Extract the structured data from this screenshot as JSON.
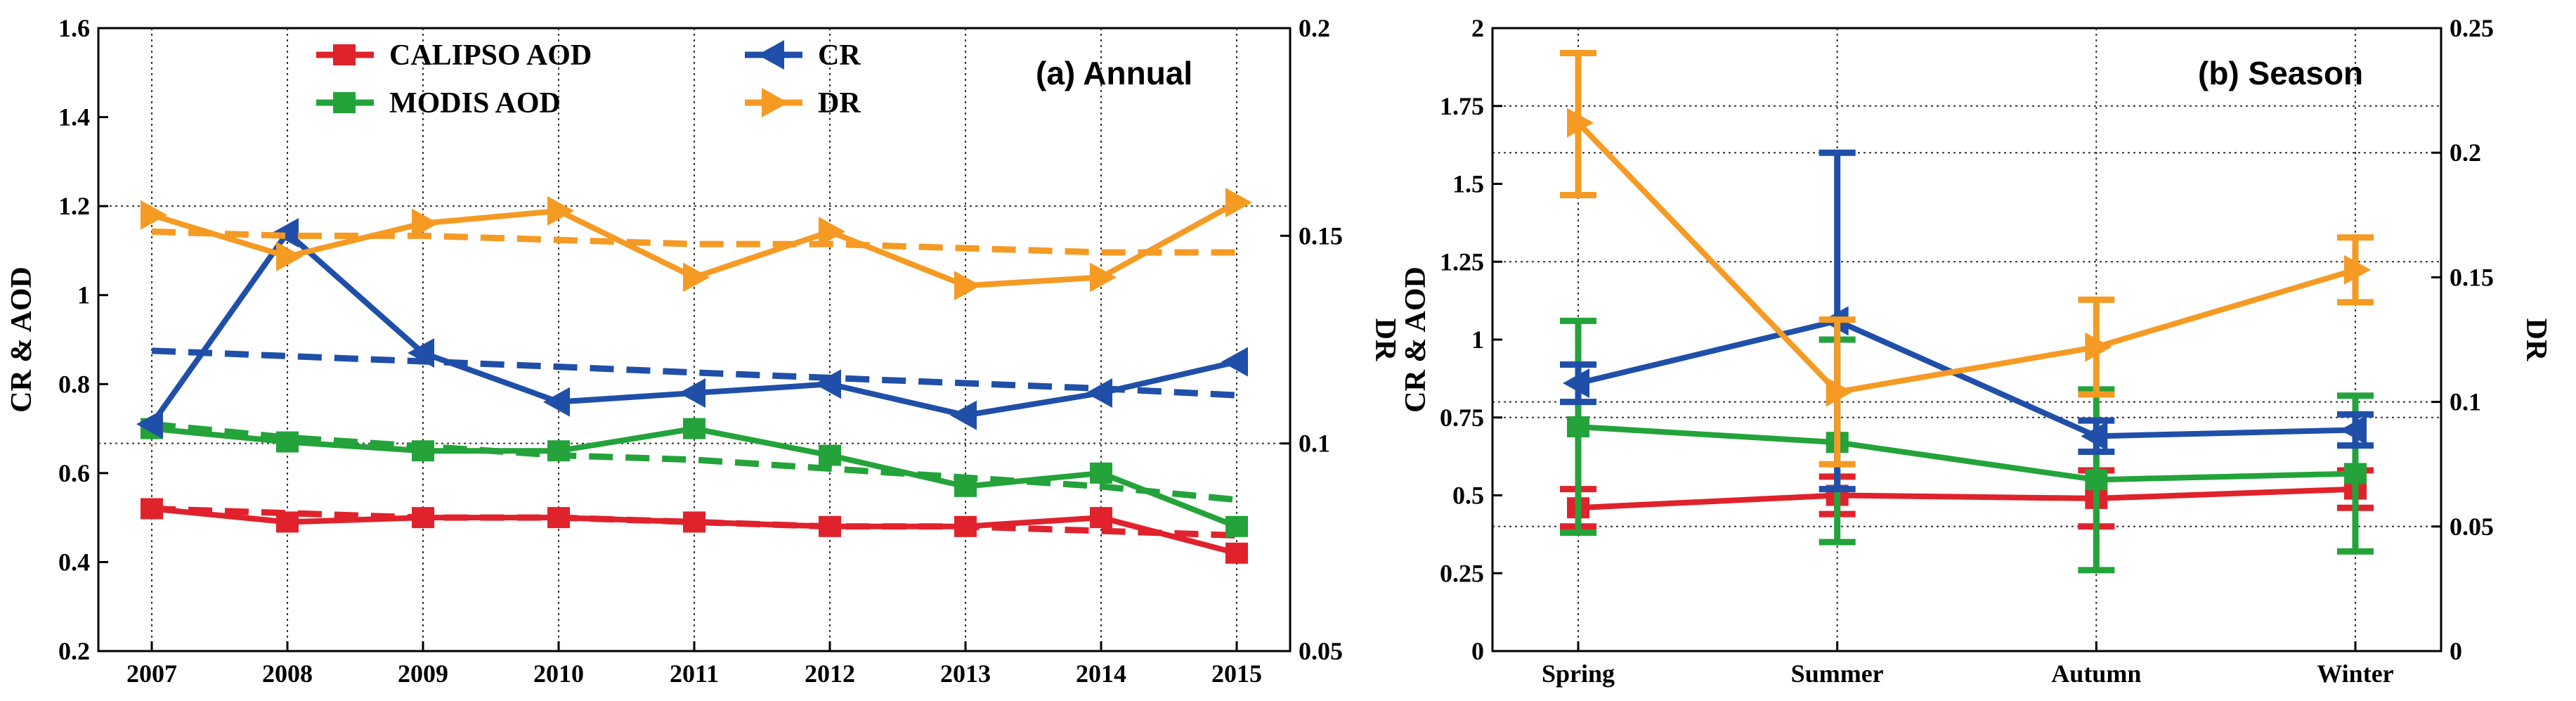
{
  "colors": {
    "calipso": "#e0222c",
    "modis": "#23a33a",
    "cr": "#1f4fa8",
    "dr": "#f59a23"
  },
  "chart_data": [
    {
      "type": "line",
      "panel_label": "(a) Annual",
      "ylabel": "CR & AOD",
      "ylabel_right": "DR",
      "categories": [
        "2007",
        "2008",
        "2009",
        "2010",
        "2011",
        "2012",
        "2013",
        "2014",
        "2015"
      ],
      "ylim": [
        0.2,
        1.6
      ],
      "yticks": [
        "0.2",
        "0.4",
        "0.6",
        "0.8",
        "1",
        "1.2",
        "1.4",
        "1.6"
      ],
      "ylim_right": [
        0.05,
        0.2
      ],
      "yticks_right": [
        "0.05",
        "0.1",
        "0.15",
        "0.2"
      ],
      "legend": [
        "CALIPSO AOD",
        "MODIS AOD",
        "CR",
        "DR"
      ],
      "series": [
        {
          "name": "CALIPSO AOD",
          "axis": "left",
          "marker": "square",
          "values": [
            0.52,
            0.49,
            0.5,
            0.5,
            0.49,
            0.48,
            0.48,
            0.5,
            0.42
          ],
          "trend": [
            0.52,
            0.51,
            0.5,
            0.5,
            0.49,
            0.48,
            0.48,
            0.47,
            0.46
          ]
        },
        {
          "name": "MODIS AOD",
          "axis": "left",
          "marker": "square",
          "values": [
            0.7,
            0.67,
            0.65,
            0.65,
            0.7,
            0.64,
            0.57,
            0.6,
            0.48
          ],
          "trend": [
            0.71,
            0.68,
            0.66,
            0.64,
            0.63,
            0.61,
            0.59,
            0.57,
            0.54
          ]
        },
        {
          "name": "CR",
          "axis": "left",
          "marker": "triangle-left",
          "values": [
            0.71,
            1.14,
            0.87,
            0.76,
            0.78,
            0.8,
            0.73,
            0.78,
            0.85
          ],
          "trend": [
            0.875,
            0.863,
            0.851,
            0.839,
            0.826,
            0.814,
            0.802,
            0.79,
            0.775
          ]
        },
        {
          "name": "DR",
          "axis": "right",
          "marker": "triangle-right",
          "values": [
            0.155,
            0.145,
            0.153,
            0.156,
            0.14,
            0.151,
            0.138,
            0.14,
            0.158
          ],
          "trend": [
            0.151,
            0.15,
            0.15,
            0.149,
            0.148,
            0.148,
            0.147,
            0.146,
            0.146
          ]
        }
      ]
    },
    {
      "type": "line",
      "panel_label": "(b) Season",
      "ylabel": "CR & AOD",
      "ylabel_right": "DR",
      "categories": [
        "Spring",
        "Summer",
        "Autumn",
        "Winter"
      ],
      "ylim": [
        0,
        2
      ],
      "yticks": [
        "0",
        "0.25",
        "0.5",
        "0.75",
        "1",
        "1.25",
        "1.5",
        "1.75",
        "2"
      ],
      "ylim_right": [
        0,
        0.25
      ],
      "yticks_right": [
        "0",
        "0.05",
        "0.1",
        "0.15",
        "0.2",
        "0.25"
      ],
      "series": [
        {
          "name": "CALIPSO AOD",
          "axis": "left",
          "marker": "square",
          "values": [
            0.46,
            0.5,
            0.49,
            0.52
          ],
          "err_low": [
            0.4,
            0.44,
            0.4,
            0.46
          ],
          "err_high": [
            0.52,
            0.56,
            0.58,
            0.58
          ]
        },
        {
          "name": "MODIS AOD",
          "axis": "left",
          "marker": "square",
          "values": [
            0.72,
            0.67,
            0.55,
            0.57
          ],
          "err_low": [
            0.38,
            0.35,
            0.26,
            0.32
          ],
          "err_high": [
            1.06,
            1.0,
            0.84,
            0.82
          ]
        },
        {
          "name": "CR",
          "axis": "left",
          "marker": "triangle-left",
          "values": [
            0.86,
            1.06,
            0.69,
            0.71
          ],
          "err_low": [
            0.8,
            0.52,
            0.64,
            0.66
          ],
          "err_high": [
            0.92,
            1.6,
            0.74,
            0.76
          ]
        },
        {
          "name": "DR",
          "axis": "right",
          "marker": "triangle-right",
          "values": [
            0.212,
            0.104,
            0.122,
            0.153
          ],
          "err_low": [
            0.183,
            0.075,
            0.103,
            0.14
          ],
          "err_high": [
            0.24,
            0.133,
            0.141,
            0.166
          ]
        }
      ]
    }
  ]
}
